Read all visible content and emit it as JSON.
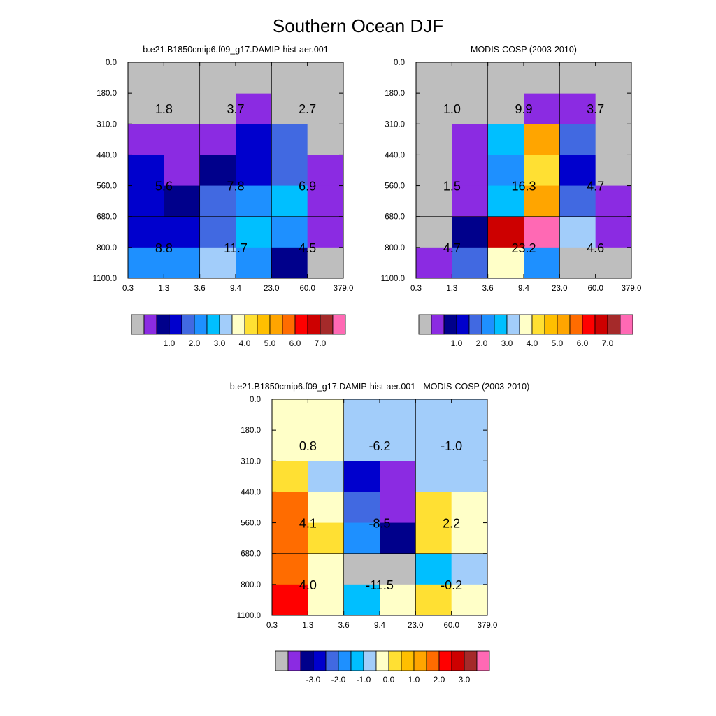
{
  "title": "Southern Ocean DJF",
  "palette": {
    "-1": "#bebebe",
    "0": "#8b2be2",
    "1": "#00008b",
    "2": "#0000cd",
    "3": "#4169e1",
    "4": "#1e90ff",
    "5": "#00bfff",
    "6": "#a2cdfa",
    "7": "#ffffc8",
    "8": "#ffe033",
    "9": "#ffbf00",
    "10": "#ffa500",
    "11": "#ff6c00",
    "12": "#ff0000",
    "13": "#cd0000",
    "14": "#a52a2a",
    "15": "#ff69b4"
  },
  "chart_data": [
    {
      "type": "heatmap",
      "title": "b.e21.B1850cmip6.f09_g17.DAMIP-hist-aer.001",
      "x_ticks": [
        "0.3",
        "1.3",
        "3.6",
        "9.4",
        "23.0",
        "60.0",
        "379.0"
      ],
      "y_ticks": [
        "0.0",
        "180.0",
        "310.0",
        "440.0",
        "560.0",
        "680.0",
        "800.0",
        "1100.0"
      ],
      "cells": [
        [
          -1,
          -1,
          -1,
          0,
          -1,
          -1
        ],
        [
          0,
          0,
          0,
          2,
          3,
          -1
        ],
        [
          2,
          0,
          1,
          2,
          3,
          0
        ],
        [
          2,
          1,
          3,
          4,
          5,
          0
        ],
        [
          2,
          2,
          3,
          5,
          4,
          0
        ],
        [
          4,
          4,
          6,
          4,
          1,
          -1
        ]
      ],
      "box_values": [
        [
          "1.8",
          "3.7",
          "2.7"
        ],
        [
          "5.6",
          "7.8",
          "6.9"
        ],
        [
          "8.8",
          "11.7",
          "4.5"
        ]
      ],
      "colorbar": {
        "labels": [
          "1.0",
          "2.0",
          "3.0",
          "4.0",
          "5.0",
          "6.0",
          "7.0"
        ]
      }
    },
    {
      "type": "heatmap",
      "title": "MODIS-COSP (2003-2010)",
      "x_ticks": [
        "0.3",
        "1.3",
        "3.6",
        "9.4",
        "23.0",
        "60.0",
        "379.0"
      ],
      "y_ticks": [
        "0.0",
        "180.0",
        "310.0",
        "440.0",
        "560.0",
        "680.0",
        "800.0",
        "1100.0"
      ],
      "cells": [
        [
          -1,
          -1,
          -1,
          0,
          0,
          -1
        ],
        [
          -1,
          0,
          5,
          10,
          3,
          -1
        ],
        [
          -1,
          0,
          4,
          8,
          2,
          -1
        ],
        [
          -1,
          0,
          5,
          10,
          3,
          0
        ],
        [
          -1,
          1,
          13,
          15,
          6,
          0
        ],
        [
          0,
          3,
          7,
          4,
          -1,
          -1
        ]
      ],
      "box_values": [
        [
          "1.0",
          "9.9",
          "3.7"
        ],
        [
          "1.5",
          "16.3",
          "4.7"
        ],
        [
          "4.7",
          "23.2",
          "4.6"
        ]
      ],
      "colorbar": {
        "labels": [
          "1.0",
          "2.0",
          "3.0",
          "4.0",
          "5.0",
          "6.0",
          "7.0"
        ]
      }
    },
    {
      "type": "heatmap",
      "title": "b.e21.B1850cmip6.f09_g17.DAMIP-hist-aer.001 - MODIS-COSP (2003-2010)",
      "x_ticks": [
        "0.3",
        "1.3",
        "3.6",
        "9.4",
        "23.0",
        "60.0",
        "379.0"
      ],
      "y_ticks": [
        "0.0",
        "180.0",
        "310.0",
        "440.0",
        "560.0",
        "680.0",
        "800.0",
        "1100.0"
      ],
      "cells": [
        [
          7,
          7,
          6,
          6,
          6,
          6
        ],
        [
          8,
          6,
          2,
          0,
          6,
          6
        ],
        [
          11,
          7,
          3,
          0,
          8,
          7
        ],
        [
          11,
          8,
          4,
          1,
          8,
          7
        ],
        [
          11,
          7,
          -1,
          -1,
          5,
          6
        ],
        [
          12,
          7,
          5,
          7,
          8,
          7
        ]
      ],
      "box_values": [
        [
          "0.8",
          "-6.2",
          "-1.0"
        ],
        [
          "4.1",
          "-8.5",
          "2.2"
        ],
        [
          "4.0",
          "-11.5",
          "-0.2"
        ]
      ],
      "colorbar": {
        "labels": [
          "-3.0",
          "-2.0",
          "-1.0",
          "0.0",
          "1.0",
          "2.0",
          "3.0"
        ]
      }
    }
  ]
}
